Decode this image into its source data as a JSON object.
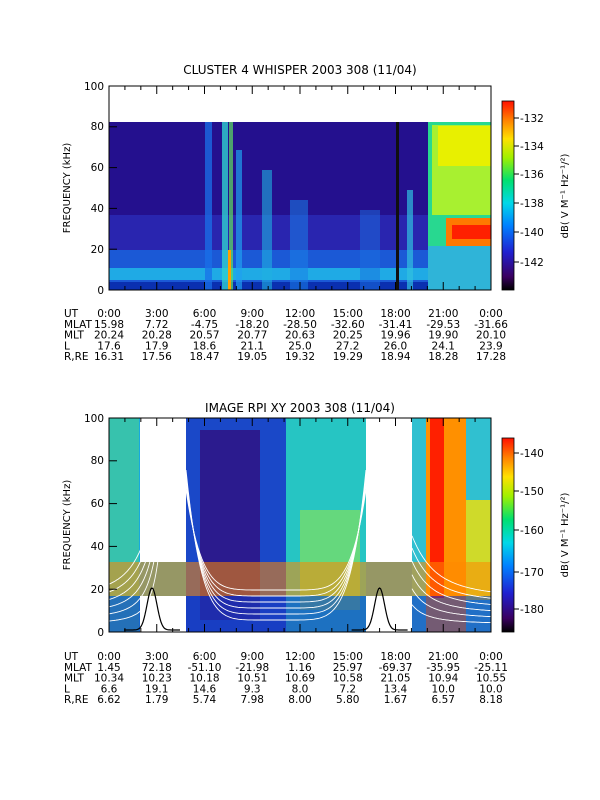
{
  "panels": [
    {
      "title": "CLUSTER 4 WHISPER 2003 308 (11/04)",
      "ylabel": "FREQUENCY (kHz)",
      "yticks": [
        "0",
        "20",
        "40",
        "60",
        "80",
        "100"
      ],
      "colorbar_label": "dB( V M⁻¹ Hz⁻¹/²)",
      "colorbar_ticks": [
        "-132",
        "-134",
        "-136",
        "-138",
        "-140",
        "-142"
      ],
      "ephemeris": [
        {
          "label": "UT",
          "values": [
            "0:00",
            "3:00",
            "6:00",
            "9:00",
            "12:00",
            "15:00",
            "18:00",
            "21:00",
            "0:00"
          ]
        },
        {
          "label": "MLAT",
          "values": [
            "15.98",
            "7.72",
            "-4.75",
            "-18.20",
            "-28.50",
            "-32.60",
            "-31.41",
            "-29.53",
            "-31.66"
          ]
        },
        {
          "label": "MLT",
          "values": [
            "20.24",
            "20.28",
            "20.57",
            "20.77",
            "20.63",
            "20.25",
            "19.96",
            "19.90",
            "20.10"
          ]
        },
        {
          "label": "L",
          "values": [
            "17.6",
            "17.9",
            "18.6",
            "21.1",
            "25.0",
            "27.2",
            "26.0",
            "24.1",
            "23.9"
          ]
        },
        {
          "label": "R,RE",
          "values": [
            "16.31",
            "17.56",
            "18.47",
            "19.05",
            "19.32",
            "19.29",
            "18.94",
            "18.28",
            "17.28"
          ]
        }
      ]
    },
    {
      "title": "IMAGE RPI XY 2003 308 (11/04)",
      "ylabel": "FREQUENCY (kHz)",
      "yticks": [
        "0",
        "20",
        "40",
        "60",
        "80",
        "100"
      ],
      "colorbar_label": "dB( V M⁻¹ Hz⁻¹/²)",
      "colorbar_ticks": [
        "-140",
        "-150",
        "-160",
        "-170",
        "-180"
      ],
      "ephemeris": [
        {
          "label": "UT",
          "values": [
            "0:00",
            "3:00",
            "6:00",
            "9:00",
            "12:00",
            "15:00",
            "18:00",
            "21:00",
            "0:00"
          ]
        },
        {
          "label": "MLAT",
          "values": [
            "1.45",
            "72.18",
            "-51.10",
            "-21.98",
            "1.16",
            "25.97",
            "-69.37",
            "-35.95",
            "-25.11"
          ]
        },
        {
          "label": "MLT",
          "values": [
            "10.34",
            "10.23",
            "10.18",
            "10.51",
            "10.69",
            "10.58",
            "21.05",
            "10.94",
            "10.55"
          ]
        },
        {
          "label": "L",
          "values": [
            "6.6",
            "19.1",
            "14.6",
            "9.3",
            "8.0",
            "7.2",
            "13.4",
            "10.0",
            "10.0"
          ]
        },
        {
          "label": "R,RE",
          "values": [
            "6.62",
            "1.79",
            "5.74",
            "7.98",
            "8.00",
            "5.80",
            "1.67",
            "6.57",
            "8.18"
          ]
        }
      ]
    }
  ],
  "chart_data": [
    {
      "type": "heatmap",
      "title": "CLUSTER 4 WHISPER 2003 308 (11/04)",
      "xlabel": "UT",
      "ylabel": "FREQUENCY (kHz)",
      "xlim": [
        0,
        24
      ],
      "ylim": [
        0,
        100
      ],
      "data_max_frequency_khz": 80,
      "colorbar": {
        "label": "dB( V M-1 Hz-1/2)",
        "range": [
          -144,
          -131
        ],
        "ticks": [
          -132,
          -134,
          -136,
          -138,
          -140,
          -142
        ],
        "colormap": "rainbow"
      },
      "features": [
        {
          "description": "narrowband emission band",
          "ut_start": 0,
          "ut_end": 21,
          "freq_khz": [
            3,
            10
          ],
          "level_db": -140
        },
        {
          "description": "broadband bursts",
          "ut_hours": [
            6.5,
            7.5,
            8.5,
            10.0,
            18.5,
            20.0
          ],
          "freq_khz": [
            0,
            80
          ]
        },
        {
          "description": "strong enhanced emission",
          "ut_start": 20.8,
          "ut_end": 24,
          "freq_khz": [
            20,
            80
          ],
          "level_db": -134
        },
        {
          "description": "intense band",
          "ut_start": 22,
          "ut_end": 24,
          "freq_khz": [
            22,
            33
          ],
          "level_db": -131
        }
      ]
    },
    {
      "type": "heatmap",
      "title": "IMAGE RPI XY 2003 308 (11/04)",
      "xlabel": "UT",
      "ylabel": "FREQUENCY (kHz)",
      "xlim": [
        0,
        24
      ],
      "ylim": [
        0,
        100
      ],
      "colorbar": {
        "label": "dB( V M-1 Hz-1/2)",
        "range": [
          -185,
          -135
        ],
        "ticks": [
          -140,
          -150,
          -160,
          -170,
          -180
        ],
        "colormap": "rainbow"
      },
      "data_gaps_ut": [
        [
          1.5,
          3.9
        ],
        [
          15.6,
          18.0
        ]
      ],
      "white_contours": "plasma frequency curves rising toward perigee passes",
      "black_curves_peak_ut": [
        2.7,
        17.0
      ],
      "features": [
        {
          "description": "broadband noise",
          "ut_start": 4.5,
          "ut_end": 12,
          "freq_khz": [
            0,
            100
          ],
          "level_db": -165
        },
        {
          "description": "strong emission",
          "ut_start": 20.5,
          "ut_end": 23.5,
          "freq_khz": [
            20,
            100
          ],
          "level_db": -142
        }
      ]
    }
  ]
}
